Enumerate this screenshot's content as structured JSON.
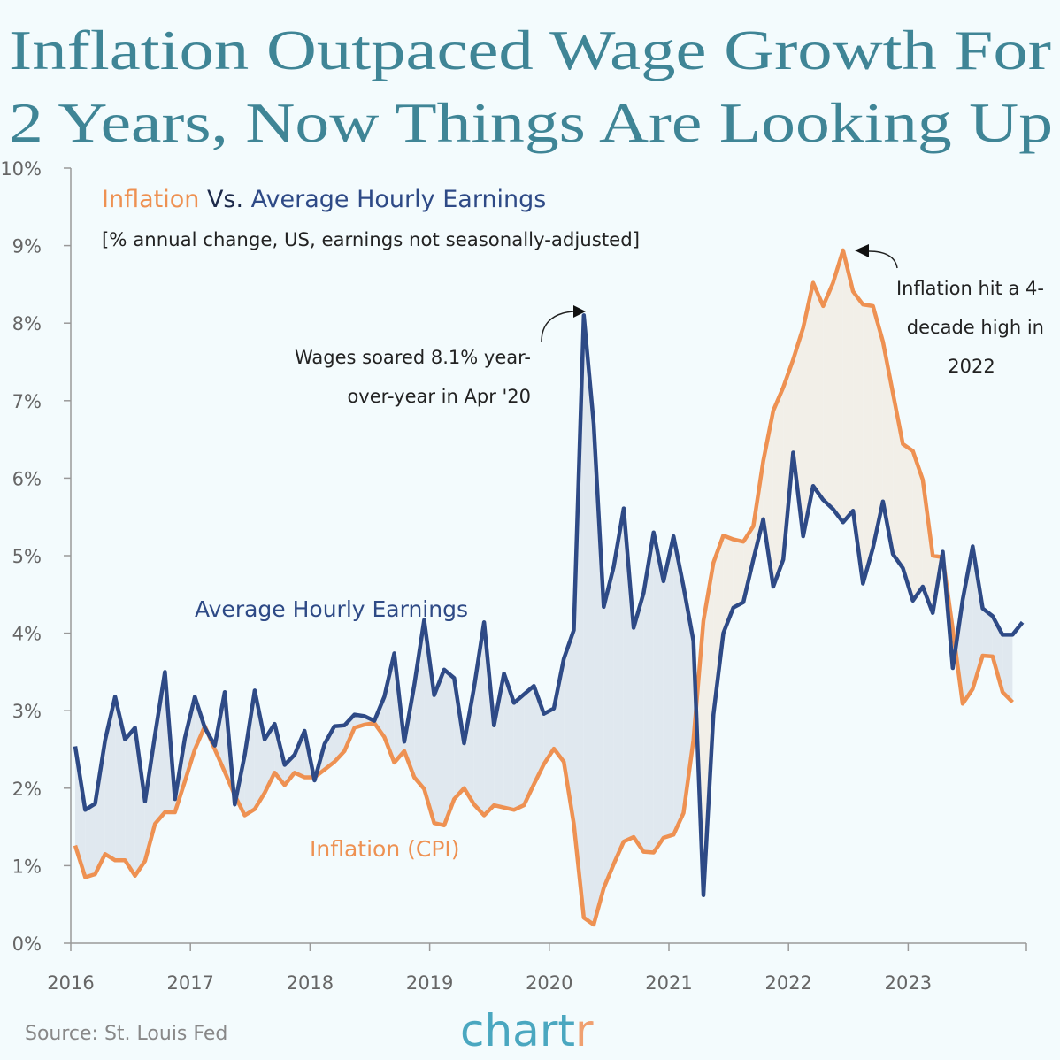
{
  "title_lines": [
    "Inflation Outpaced Wage Growth For",
    "2 Years, Now Things Are Looking Up"
  ],
  "subtitle": {
    "part1": "Inflation",
    "part2": " Vs. ",
    "part3": "Average Hourly Earnings"
  },
  "note": "[% annual change, US, earnings not seasonally-adjusted]",
  "source": "Source: St. Louis Fed",
  "logo": {
    "main": "chart",
    "accent": "r"
  },
  "colors": {
    "background": "#f3fbfd",
    "title": "#3f8596",
    "wages": "#2e4a86",
    "inflation": "#ee9152",
    "wages_above_fill": "#e0e8ef",
    "inflation_above_fill": "#f2efe8"
  },
  "annotations": {
    "wages_peak": [
      "Wages soared 8.1% year-",
      "over-year in Apr '20"
    ],
    "inflation_peak": [
      "Inflation hit a 4-",
      "decade high in",
      "2022"
    ]
  },
  "chart_data": {
    "type": "line",
    "title": "Inflation Vs. Average Hourly Earnings",
    "ylim": [
      0,
      10
    ],
    "y_ticks": [
      "0%",
      "1%",
      "2%",
      "3%",
      "4%",
      "5%",
      "6%",
      "7%",
      "8%",
      "9%",
      "10%"
    ],
    "x_ticks": [
      "2016",
      "2017",
      "2018",
      "2019",
      "2020",
      "2021",
      "2022",
      "2023"
    ],
    "x_start": "2016-01",
    "frequency": "monthly",
    "grid": false,
    "series": [
      {
        "name": "Average Hourly Earnings",
        "values": [
          2.54,
          1.72,
          1.8,
          2.62,
          3.18,
          2.63,
          2.78,
          1.83,
          2.69,
          3.5,
          1.86,
          2.65,
          3.18,
          2.78,
          2.55,
          3.24,
          1.79,
          2.43,
          3.26,
          2.63,
          2.83,
          2.3,
          2.43,
          2.74,
          2.1,
          2.57,
          2.8,
          2.81,
          2.95,
          2.93,
          2.87,
          3.18,
          3.74,
          2.6,
          3.33,
          4.17,
          3.2,
          3.53,
          3.42,
          2.58,
          3.3,
          4.14,
          2.81,
          3.48,
          3.1,
          3.21,
          3.32,
          2.96,
          3.03,
          3.67,
          4.04,
          8.1,
          6.7,
          4.34,
          4.86,
          5.61,
          4.07,
          4.52,
          5.3,
          4.67,
          5.25,
          4.6,
          3.9,
          0.62,
          2.95,
          4.0,
          4.33,
          4.4,
          4.95,
          5.47,
          4.6,
          4.95,
          6.33,
          5.25,
          5.9,
          5.72,
          5.6,
          5.43,
          5.58,
          4.64,
          5.1,
          5.7,
          5.02,
          4.84,
          4.42,
          4.6,
          4.26,
          5.05,
          3.55,
          4.43,
          5.12,
          4.32,
          4.22,
          3.98,
          3.98,
          4.14
        ]
      },
      {
        "name": "Inflation (CPI)",
        "values": [
          1.26,
          0.85,
          0.89,
          1.15,
          1.07,
          1.07,
          0.87,
          1.06,
          1.54,
          1.69,
          1.69,
          2.09,
          2.5,
          2.8,
          2.5,
          2.21,
          1.91,
          1.65,
          1.73,
          1.94,
          2.2,
          2.04,
          2.2,
          2.14,
          2.14,
          2.24,
          2.34,
          2.48,
          2.78,
          2.82,
          2.84,
          2.66,
          2.33,
          2.48,
          2.14,
          1.99,
          1.55,
          1.52,
          1.86,
          2.0,
          1.79,
          1.65,
          1.78,
          1.75,
          1.72,
          1.78,
          2.05,
          2.31,
          2.51,
          2.34,
          1.54,
          0.33,
          0.24,
          0.71,
          1.02,
          1.31,
          1.37,
          1.18,
          1.17,
          1.36,
          1.4,
          1.68,
          2.62,
          4.16,
          4.91,
          5.26,
          5.21,
          5.18,
          5.38,
          6.22,
          6.87,
          7.17,
          7.53,
          7.94,
          8.52,
          8.22,
          8.52,
          8.94,
          8.41,
          8.24,
          8.22,
          7.76,
          7.1,
          6.44,
          6.35,
          5.98,
          5.0,
          4.98,
          4.05,
          3.09,
          3.28,
          3.71,
          3.7,
          3.24,
          3.11
        ]
      }
    ]
  }
}
